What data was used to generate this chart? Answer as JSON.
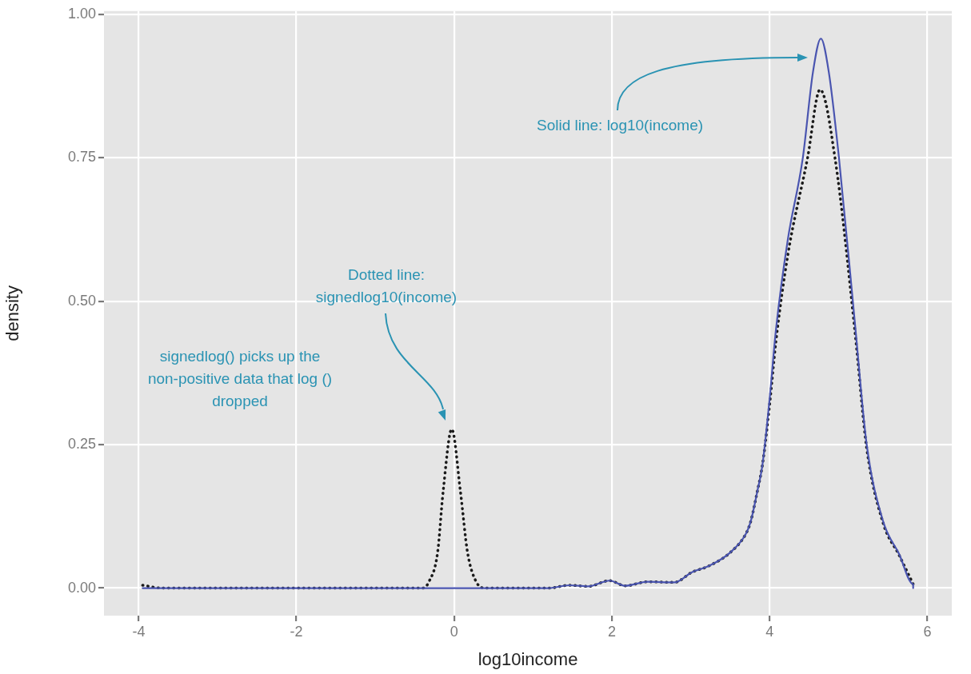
{
  "chart_data": {
    "type": "line",
    "xlabel": "log10income",
    "ylabel": "density",
    "xlim": [
      -4.44,
      6.31
    ],
    "ylim": [
      -0.048,
      1.006
    ],
    "xticks": [
      -4,
      -2,
      0,
      2,
      4,
      6
    ],
    "yticks": [
      {
        "value": 0,
        "label": "0.00"
      },
      {
        "value": 0.25,
        "label": "0.25"
      },
      {
        "value": 0.5,
        "label": "0.50"
      },
      {
        "value": 0.75,
        "label": "0.75"
      },
      {
        "value": 1,
        "label": "1.00"
      }
    ],
    "grid": true,
    "marker": "none",
    "series": [
      {
        "color": "#4a55b0",
        "line_style": "solid",
        "x": [
          -3.95,
          -3.7,
          0,
          1.2,
          1.46,
          1.7,
          1.97,
          2.17,
          2.45,
          2.79,
          3.02,
          3.22,
          3.5,
          3.7,
          3.76,
          3.84,
          3.91,
          4.0,
          4.08,
          4.23,
          4.42,
          4.55,
          4.65,
          4.75,
          4.88,
          5.08,
          5.23,
          5.44,
          5.64,
          5.82,
          5.82
        ],
        "values": [
          0,
          0,
          0,
          0,
          0.005,
          0.003,
          0.013,
          0.004,
          0.011,
          0.01,
          0.028,
          0.038,
          0.062,
          0.095,
          0.116,
          0.166,
          0.216,
          0.33,
          0.45,
          0.607,
          0.749,
          0.9,
          0.958,
          0.9,
          0.749,
          0.464,
          0.251,
          0.116,
          0.06,
          0.007,
          0
        ]
      },
      {
        "color": "#1a1a1a",
        "line_style": "dotted",
        "x": [
          -3.95,
          -3.7,
          -0.4,
          -0.32,
          -0.21,
          -0.14,
          -0.03,
          0.08,
          0.17,
          0.28,
          0.4,
          1.2,
          1.46,
          1.7,
          1.97,
          2.17,
          2.45,
          2.79,
          3.02,
          3.22,
          3.5,
          3.7,
          3.76,
          3.84,
          3.91,
          4.0,
          4.08,
          4.23,
          4.48,
          4.64,
          4.83,
          5.08,
          5.23,
          5.44,
          5.64,
          5.82
        ],
        "values": [
          0.005,
          0,
          0,
          0.011,
          0.062,
          0.168,
          0.277,
          0.168,
          0.062,
          0.011,
          0,
          0,
          0.005,
          0.003,
          0.013,
          0.004,
          0.011,
          0.01,
          0.028,
          0.038,
          0.062,
          0.095,
          0.116,
          0.166,
          0.216,
          0.32,
          0.43,
          0.58,
          0.749,
          0.869,
          0.749,
          0.45,
          0.245,
          0.113,
          0.058,
          0.007
        ]
      }
    ],
    "annotations": [
      "Solid line: log10(income)",
      "Dotted line:\nsignedlog10(income)",
      "signedlog() picks up the\nnon-positive data that log ()\ndropped"
    ]
  }
}
